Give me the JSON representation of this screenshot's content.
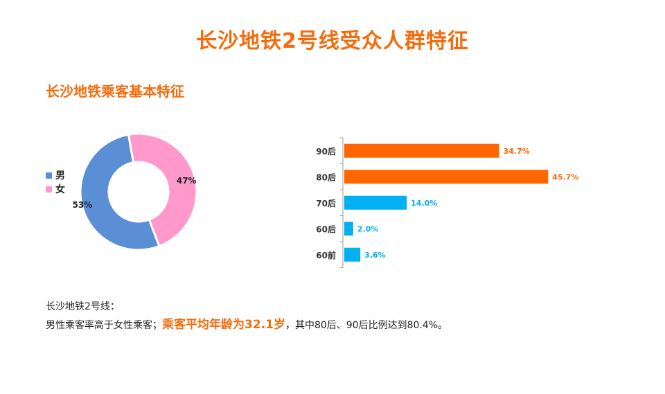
{
  "title": "长沙地铁2号线受众人群特征",
  "section_title": "长沙地铁乘客基本特征",
  "notes": {
    "line1": "长沙地铁2号线：",
    "line2_prefix": "男性乘客率高于女性乘客；",
    "line2_highlight": "乘客平均年龄为32.1岁",
    "line2_suffix": "，其中80后、90后比例达到80.4%。"
  },
  "colors": {
    "accent": "#f36c0c",
    "male": "#5b8fd5",
    "female": "#ff99cc",
    "bar_orange": "#ff6600",
    "bar_blue": "#00b0f0"
  },
  "chart_data": [
    {
      "type": "pie",
      "donut": true,
      "legend_position": "left",
      "categories": [
        "男",
        "女"
      ],
      "values": [
        53,
        47
      ],
      "labels": [
        "53%",
        "47%"
      ],
      "colors": [
        "#5b8fd5",
        "#ff99cc"
      ]
    },
    {
      "type": "bar",
      "orientation": "horizontal",
      "categories": [
        "90后",
        "80后",
        "70后",
        "60后",
        "60前"
      ],
      "values": [
        34.7,
        45.7,
        14.0,
        2.0,
        3.6
      ],
      "labels": [
        "34.7%",
        "45.7%",
        "14.0%",
        "2.0%",
        "3.6%"
      ],
      "colors": [
        "#ff6600",
        "#ff6600",
        "#00b0f0",
        "#00b0f0",
        "#00b0f0"
      ],
      "xlim": [
        0,
        50
      ]
    }
  ]
}
